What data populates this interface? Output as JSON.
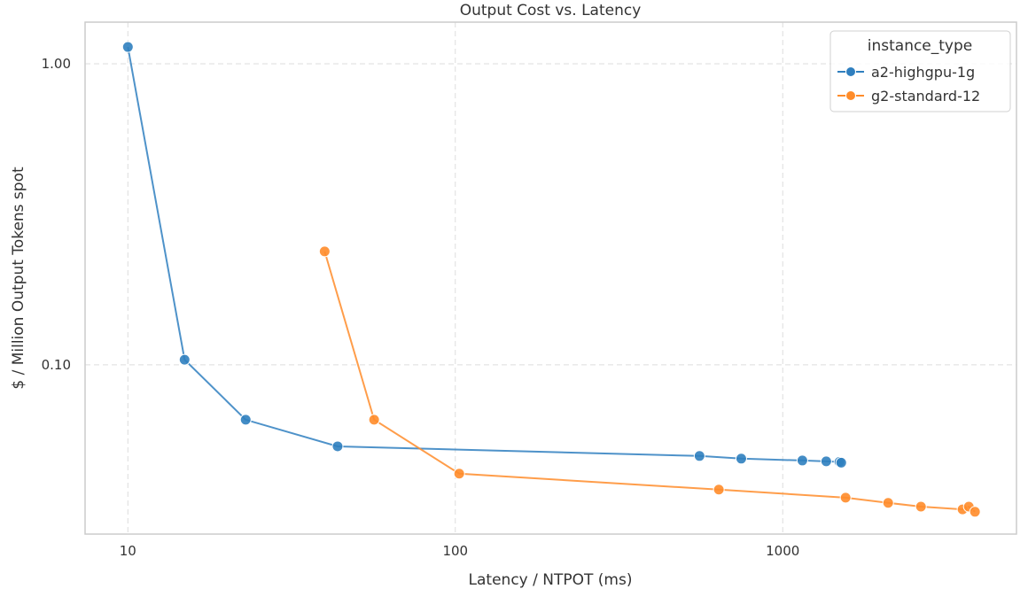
{
  "chart_data": {
    "type": "line",
    "title": "Output Cost vs. Latency",
    "xlabel": "Latency / NTPOT (ms)",
    "ylabel": "$ / Million Output Tokens spot",
    "xscale": "log",
    "yscale": "log",
    "xlim": [
      7.4,
      5175
    ],
    "ylim": [
      0.0274,
      1.375
    ],
    "xticks": [
      {
        "value": 10,
        "label": "10"
      },
      {
        "value": 100,
        "label": "100"
      },
      {
        "value": 1000,
        "label": "1000"
      }
    ],
    "yticks": [
      {
        "value": 0.1,
        "label": "0.10"
      },
      {
        "value": 1.0,
        "label": "1.00"
      }
    ],
    "grid": true,
    "legend": {
      "title": "instance_type",
      "placement": "top-right"
    },
    "series": [
      {
        "name": "a2-highgpu-1g",
        "color": "#2f7fbf",
        "x": [
          10,
          14.9,
          22.9,
          43.7,
          557,
          747,
          1148,
          1358,
          1490,
          1509
        ],
        "y": [
          1.137,
          0.104,
          0.0657,
          0.0536,
          0.0498,
          0.0488,
          0.0481,
          0.0478,
          0.0476,
          0.0473
        ]
      },
      {
        "name": "g2-standard-12",
        "color": "#ff8c2a",
        "x": [
          39.9,
          56.5,
          102.8,
          638,
          1556,
          2099,
          2643,
          3541,
          3701,
          3865
        ],
        "y": [
          0.238,
          0.0657,
          0.0435,
          0.0385,
          0.0362,
          0.0348,
          0.0338,
          0.0331,
          0.0338,
          0.0325
        ]
      }
    ]
  }
}
